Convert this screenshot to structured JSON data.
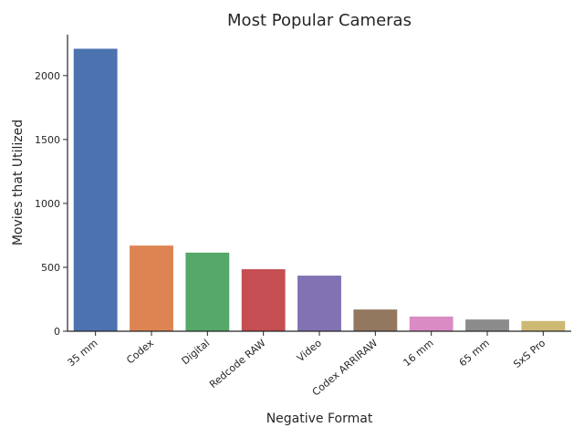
{
  "chart_data": {
    "type": "bar",
    "title": "Most Popular Cameras",
    "xlabel": "Negative Format",
    "ylabel": "Movies that Utilized",
    "categories": [
      "35 mm",
      "Codex",
      "Digital",
      "Redcode RAW",
      "Video",
      "Codex ARRIRAW",
      "16 mm",
      "65 mm",
      "SxS Pro"
    ],
    "values": [
      2210,
      670,
      615,
      485,
      435,
      170,
      115,
      92,
      80
    ],
    "colors": [
      "#4c72b0",
      "#dd8452",
      "#55a868",
      "#c44e52",
      "#8172b3",
      "#937860",
      "#da8bc3",
      "#8c8c8c",
      "#ccb974"
    ],
    "ylim": [
      0,
      2320
    ],
    "yticks": [
      "0",
      "500",
      "1000",
      "1500",
      "2000"
    ],
    "grid": false
  }
}
